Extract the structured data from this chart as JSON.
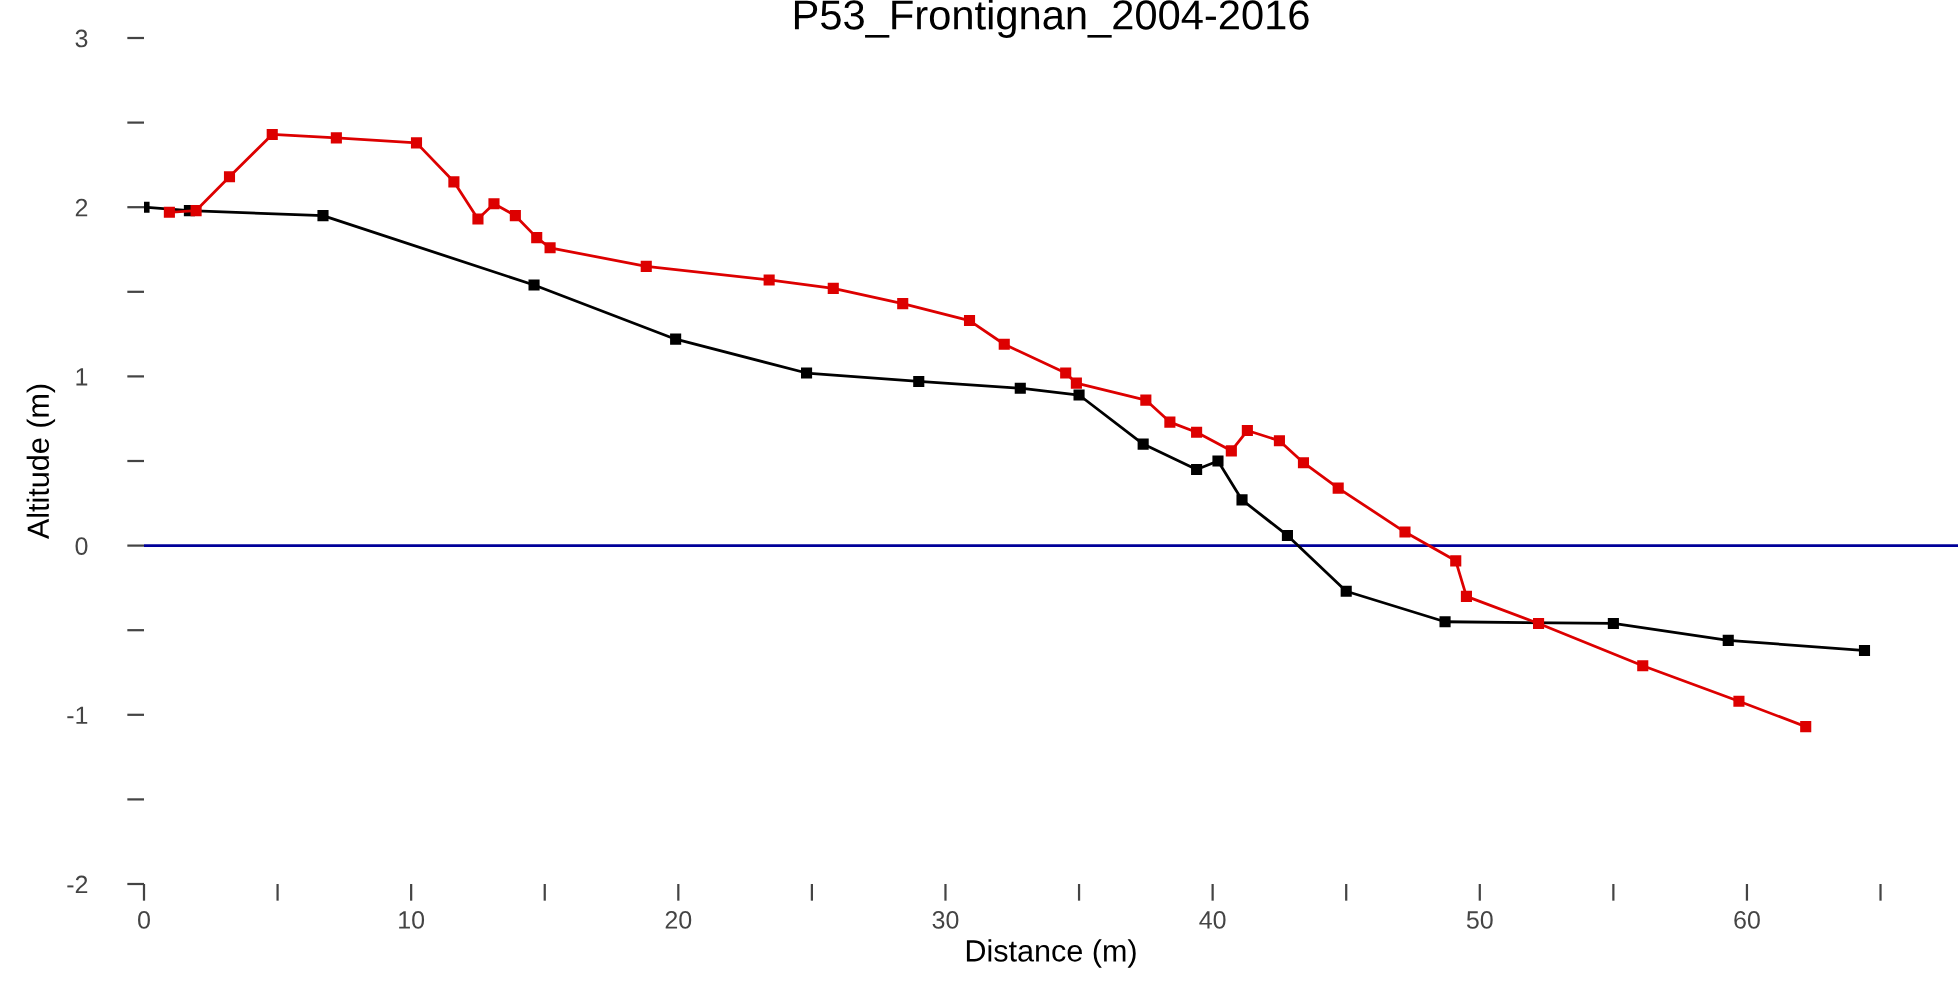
{
  "chart_data": {
    "type": "line",
    "title": "P53_Frontignan_2004-2016",
    "xlabel": "Distance (m)",
    "ylabel": "Altitude (m)",
    "xlim": [
      0,
      67.9
    ],
    "ylim": [
      -2,
      3
    ],
    "xticks": [
      0,
      {
        "value": 5,
        "label": null
      },
      10,
      {
        "value": 15,
        "label": null
      },
      20,
      {
        "value": 25,
        "label": null
      },
      30,
      {
        "value": 35,
        "label": null
      },
      40,
      {
        "value": 45,
        "label": null
      },
      50,
      {
        "value": 55,
        "label": null
      },
      60,
      {
        "value": 65,
        "label": null
      }
    ],
    "yticks": [
      -2,
      {
        "value": -1.5,
        "label": null
      },
      -1,
      {
        "value": -0.5,
        "label": null
      },
      0,
      {
        "value": 0.5,
        "label": null
      },
      1,
      {
        "value": 1.5,
        "label": null
      },
      2,
      {
        "value": 2.5,
        "label": null
      },
      3
    ],
    "marker": "square",
    "grid": false,
    "legend": false,
    "ref_lines": [
      {
        "axis": "y",
        "value": 0,
        "color": "#000099"
      }
    ],
    "series": [
      {
        "color": "#000000",
        "x": [
          0,
          1.7,
          6.7,
          14.6,
          19.9,
          24.8,
          29.0,
          32.8,
          35.0,
          37.4,
          39.4,
          40.2,
          41.1,
          42.8,
          45.0,
          48.7,
          55.0,
          59.3,
          64.4
        ],
        "values": [
          2.0,
          1.98,
          1.95,
          1.54,
          1.22,
          1.02,
          0.97,
          0.93,
          0.89,
          0.6,
          0.45,
          0.5,
          0.27,
          0.06,
          -0.27,
          -0.45,
          -0.46,
          -0.56,
          -0.62
        ]
      },
      {
        "color": "#dd0000",
        "x": [
          0.95,
          1.95,
          3.2,
          4.8,
          7.2,
          10.2,
          11.6,
          12.5,
          13.1,
          13.9,
          14.7,
          15.2,
          18.8,
          23.4,
          25.8,
          28.4,
          30.9,
          32.2,
          34.5,
          34.9,
          37.5,
          38.4,
          39.4,
          40.7,
          41.3,
          42.5,
          43.4,
          44.7,
          47.2,
          49.1,
          49.5,
          52.2,
          56.1,
          59.7,
          62.2
        ],
        "values": [
          1.97,
          1.98,
          2.18,
          2.43,
          2.41,
          2.38,
          2.15,
          1.93,
          2.02,
          1.95,
          1.82,
          1.76,
          1.65,
          1.57,
          1.52,
          1.43,
          1.33,
          1.19,
          1.02,
          0.96,
          0.86,
          0.73,
          0.67,
          0.56,
          0.68,
          0.62,
          0.49,
          0.34,
          0.08,
          -0.09,
          -0.3,
          -0.46,
          -0.71,
          -0.92,
          -1.07
        ]
      }
    ]
  }
}
